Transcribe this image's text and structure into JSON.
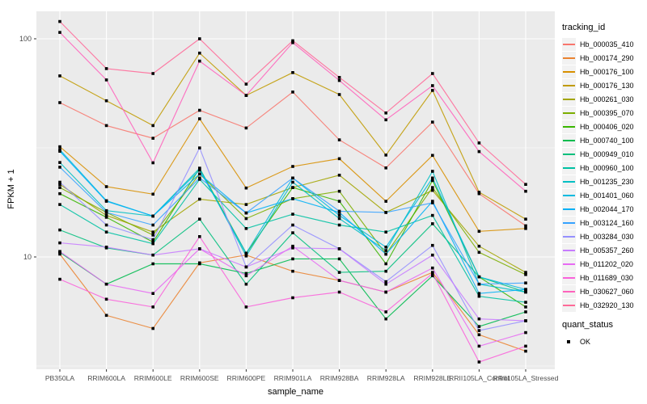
{
  "figure": {
    "panel_background": "#EBEBEB",
    "grid_color": "#FFFFFF",
    "tick_color": "#333333",
    "tick_label_color": "#4D4D4D",
    "title_color": "#000000",
    "point_color": "#000000"
  },
  "legend": {
    "tracking_title": "tracking_id",
    "quant_title": "quant_status",
    "quant_items": [
      {
        "label": "OK",
        "shape": "filled-square"
      }
    ]
  },
  "chart_data": {
    "type": "line",
    "xlabel": "sample_name",
    "ylabel": "FPKM + 1",
    "y_scale": "log10",
    "y_ticks": [
      100,
      10
    ],
    "y_minor_ticks": [
      31.623,
      3.1623
    ],
    "ylim": [
      3.0,
      134
    ],
    "grid": true,
    "legend_position": "right",
    "point_shape": "filled-square",
    "x_categories": [
      "PB350LA",
      "RRIM600LA",
      "RRIM600LE",
      "RRIM600SE",
      "RRIM600PE",
      "RRIM901LA",
      "RRIM928BA",
      "RRIM928LA",
      "RRIM928LE",
      "RRII105LA_Control",
      "RRII105LA_Stressed"
    ],
    "series": [
      {
        "name": "Hb_000035_410",
        "color": "#F8766D",
        "values": [
          51,
          40,
          35,
          47,
          39,
          57,
          34.4,
          25.6,
          41.5,
          19.5,
          13.9
        ]
      },
      {
        "name": "Hb_000174_290",
        "color": "#EA8331",
        "values": [
          10.3,
          5.4,
          4.7,
          9.4,
          10.2,
          8.6,
          7.8,
          6.9,
          8.5,
          4.4,
          3.7
        ]
      },
      {
        "name": "Hb_000176_100",
        "color": "#D89000",
        "values": [
          32,
          21,
          19.4,
          43,
          20.7,
          26,
          28.2,
          18,
          29.2,
          13.1,
          13.5
        ]
      },
      {
        "name": "Hb_000176_130",
        "color": "#C09B00",
        "values": [
          67.6,
          52,
          40,
          86,
          55,
          70,
          55.5,
          29.3,
          58,
          19.8,
          14.9
        ]
      },
      {
        "name": "Hb_000261_030",
        "color": "#A3A500",
        "values": [
          21.5,
          15.5,
          13,
          18.4,
          17.4,
          20.8,
          23.7,
          16,
          20.2,
          11.2,
          8.5
        ]
      },
      {
        "name": "Hb_000395_070",
        "color": "#7CAE00",
        "values": [
          20.8,
          16,
          12.6,
          24,
          15,
          18.5,
          20,
          10.3,
          20.8,
          10.5,
          8.3
        ]
      },
      {
        "name": "Hb_000406_020",
        "color": "#39B600",
        "values": [
          19.5,
          15.2,
          11.7,
          25.5,
          10.4,
          20.8,
          18,
          9.3,
          22.4,
          8.1,
          5.9
        ]
      },
      {
        "name": "Hb_000740_100",
        "color": "#00BB4E",
        "values": [
          10.5,
          7.5,
          9.3,
          9.3,
          8.4,
          9.8,
          9.8,
          5.2,
          8.2,
          4.8,
          5.6
        ]
      },
      {
        "name": "Hb_000949_010",
        "color": "#00BF7D",
        "values": [
          13.3,
          11,
          10.2,
          14.9,
          7.5,
          12.9,
          8.5,
          8.6,
          14.2,
          8.1,
          6.9
        ]
      },
      {
        "name": "Hb_000960_100",
        "color": "#00C1A3",
        "values": [
          17.4,
          13,
          11.5,
          22.7,
          13.5,
          15.7,
          14,
          13,
          15.5,
          6.6,
          6.2
        ]
      },
      {
        "name": "Hb_001235_230",
        "color": "#00BFC4",
        "values": [
          27.1,
          16.3,
          15.4,
          25.5,
          10.1,
          22,
          15,
          10.7,
          24.7,
          7.5,
          6.9
        ]
      },
      {
        "name": "Hb_001401_060",
        "color": "#00BAE0",
        "values": [
          31,
          18.1,
          15.4,
          25,
          10.4,
          23,
          15.5,
          11.1,
          23,
          8.1,
          7.1
        ]
      },
      {
        "name": "Hb_002044_170",
        "color": "#00B0F6",
        "values": [
          30.5,
          18,
          15.4,
          24,
          15.9,
          18.5,
          16,
          10.3,
          18,
          6.8,
          7.1
        ]
      },
      {
        "name": "Hb_003124_160",
        "color": "#35A2FF",
        "values": [
          25.8,
          16,
          14,
          23,
          15.9,
          23,
          16.2,
          16,
          17.7,
          7.5,
          7.6
        ]
      },
      {
        "name": "Hb_003284_030",
        "color": "#9590FF",
        "values": [
          22,
          14,
          12,
          31.6,
          9.0,
          14,
          10.9,
          7.7,
          11.3,
          4.6,
          5.1
        ]
      },
      {
        "name": "Hb_005357_260",
        "color": "#C77CFF",
        "values": [
          11.6,
          11.1,
          10.2,
          10.9,
          9.0,
          11.0,
          10.9,
          7.5,
          10.2,
          5.2,
          5.1
        ]
      },
      {
        "name": "Hb_011202_020",
        "color": "#E76BF3",
        "values": [
          10.6,
          7.5,
          6.8,
          10.9,
          8.2,
          11.2,
          7.8,
          6.9,
          8.9,
          3.9,
          4.5
        ]
      },
      {
        "name": "Hb_011689_030",
        "color": "#FA62DB",
        "values": [
          7.9,
          6.4,
          5.9,
          12.4,
          5.9,
          6.5,
          6.9,
          5.6,
          8.4,
          3.3,
          3.9
        ]
      },
      {
        "name": "Hb_030627_060",
        "color": "#FF62BC",
        "values": [
          107,
          64.8,
          27,
          79,
          55,
          96,
          64.4,
          42.5,
          61,
          30.4,
          20
        ]
      },
      {
        "name": "Hb_032920_130",
        "color": "#FF6A98",
        "values": [
          120,
          73,
          69.3,
          100,
          62,
          98,
          66.5,
          45.7,
          69.3,
          33.3,
          21.5
        ]
      }
    ]
  }
}
